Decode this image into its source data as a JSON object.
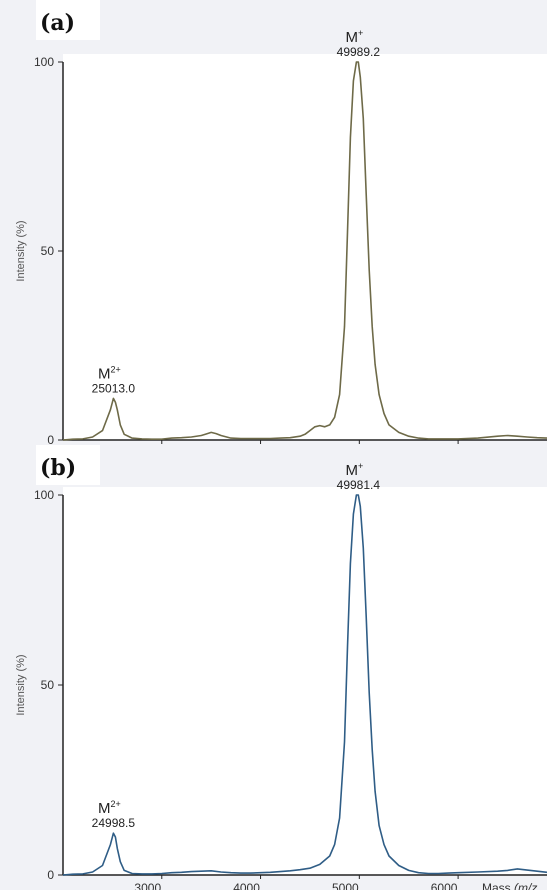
{
  "chart_data": [
    {
      "type": "line",
      "panel_label": "(a)",
      "xlabel": "Mass",
      "xlabel_italic": "(m/z)",
      "ylabel": "Intensity (%)",
      "xlim": [
        2000,
        6900
      ],
      "ylim": [
        0,
        100
      ],
      "x_ticks": [
        "3000",
        "4000",
        "5000",
        "6000"
      ],
      "y_ticks": [
        "0",
        "50",
        "100"
      ],
      "line_color": "#6e6a48",
      "series": [
        {
          "x": [
            2000,
            2100,
            2200,
            2300,
            2400,
            2480,
            2510,
            2530,
            2550,
            2580,
            2620,
            2700,
            2800,
            2900,
            3000,
            3100,
            3200,
            3300,
            3400,
            3450,
            3500,
            3550,
            3600,
            3700,
            3800,
            3900,
            4000,
            4100,
            4200,
            4300,
            4400,
            4450,
            4500,
            4550,
            4600,
            4650,
            4700,
            4750,
            4800,
            4850,
            4880,
            4910,
            4940,
            4970,
            4990,
            5010,
            5040,
            5070,
            5100,
            5130,
            5160,
            5200,
            5250,
            5300,
            5400,
            5500,
            5600,
            5700,
            5800,
            5900,
            6000,
            6200,
            6400,
            6500,
            6600,
            6700,
            6800,
            6900
          ],
          "y": [
            0,
            0.2,
            0.3,
            0.8,
            2.5,
            8,
            11,
            10,
            8,
            4,
            1.5,
            0.5,
            0.3,
            0.2,
            0.2,
            0.5,
            0.6,
            0.8,
            1.2,
            1.6,
            2,
            1.7,
            1.2,
            0.5,
            0.4,
            0.4,
            0.4,
            0.4,
            0.5,
            0.6,
            1,
            1.5,
            2.5,
            3.5,
            3.8,
            3.5,
            4,
            6,
            12,
            30,
            55,
            80,
            95,
            100,
            100,
            96,
            85,
            65,
            45,
            30,
            20,
            12,
            7,
            4,
            2,
            1,
            0.5,
            0.3,
            0.3,
            0.3,
            0.3,
            0.5,
            1,
            1.2,
            1.0,
            0.8,
            0.6,
            0.5
          ]
        }
      ],
      "annotations": [
        {
          "label": "M",
          "superscript": "2+",
          "value": "25013.0",
          "x": 2510,
          "y": 11
        },
        {
          "label": "M",
          "superscript": "+",
          "value": "49989.2",
          "x": 4990,
          "y": 100
        }
      ]
    },
    {
      "type": "line",
      "panel_label": "(b)",
      "xlabel": "Mass",
      "xlabel_italic": "(m/z",
      "ylabel": "Intensity (%)",
      "xlim": [
        2000,
        6900
      ],
      "ylim": [
        0,
        100
      ],
      "x_ticks": [
        "3000",
        "4000",
        "5000",
        "6000"
      ],
      "y_ticks": [
        "0",
        "50",
        "100"
      ],
      "line_color": "#2f5d86",
      "series": [
        {
          "x": [
            2000,
            2100,
            2200,
            2300,
            2400,
            2480,
            2510,
            2530,
            2550,
            2580,
            2620,
            2700,
            2800,
            2900,
            3000,
            3100,
            3200,
            3300,
            3400,
            3500,
            3600,
            3700,
            3800,
            3900,
            4000,
            4100,
            4200,
            4300,
            4400,
            4500,
            4600,
            4700,
            4750,
            4800,
            4850,
            4880,
            4910,
            4940,
            4970,
            4990,
            5010,
            5040,
            5070,
            5100,
            5130,
            5160,
            5200,
            5250,
            5300,
            5400,
            5500,
            5600,
            5700,
            5800,
            5900,
            6000,
            6200,
            6400,
            6500,
            6600,
            6700,
            6800,
            6900
          ],
          "y": [
            0,
            0.2,
            0.3,
            0.8,
            2.5,
            8,
            11,
            10,
            7,
            3.5,
            1.2,
            0.4,
            0.3,
            0.3,
            0.4,
            0.6,
            0.7,
            0.9,
            1,
            1.1,
            0.8,
            0.6,
            0.5,
            0.5,
            0.6,
            0.7,
            0.9,
            1.1,
            1.4,
            1.8,
            2.8,
            5,
            8,
            15,
            35,
            60,
            82,
            95,
            100,
            100,
            97,
            86,
            68,
            48,
            33,
            22,
            13,
            8,
            5,
            2.5,
            1.2,
            0.6,
            0.4,
            0.4,
            0.5,
            0.6,
            0.8,
            1.0,
            1.2,
            1.6,
            1.3,
            1.0,
            0.7
          ]
        }
      ],
      "annotations": [
        {
          "label": "M",
          "superscript": "2+",
          "value": "24998.5",
          "x": 2510,
          "y": 11
        },
        {
          "label": "M",
          "superscript": "+",
          "value": "49981.4",
          "x": 4990,
          "y": 100
        }
      ]
    }
  ]
}
